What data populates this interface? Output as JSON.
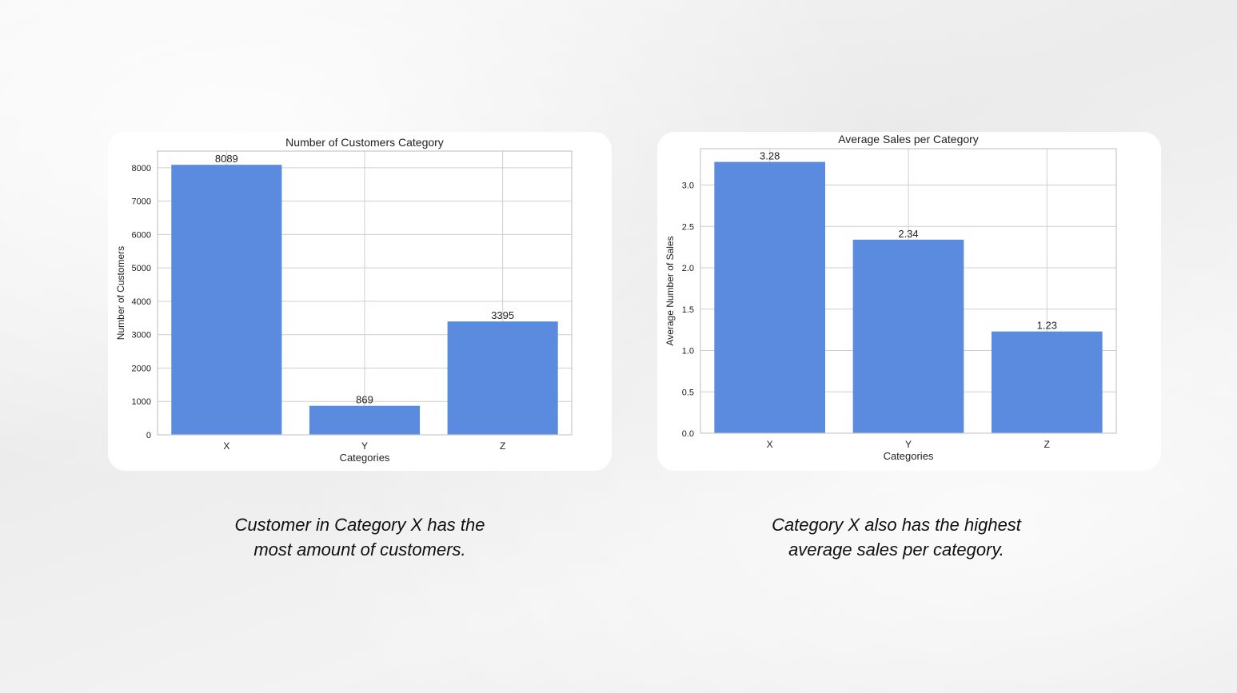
{
  "theme": {
    "bar_color": "#5b8bde",
    "grid_color": "#cfcfcf",
    "frame_color": "#c8c8c8",
    "text_color": "#222222"
  },
  "chart_data": [
    {
      "type": "bar",
      "title": "Number of Customers Category",
      "xlabel": "Categories",
      "ylabel": "Number of Customers",
      "categories": [
        "X",
        "Y",
        "Z"
      ],
      "values": [
        8089,
        869,
        3395
      ],
      "value_labels": [
        "8089",
        "869",
        "3395"
      ],
      "yticks": [
        0,
        1000,
        2000,
        3000,
        4000,
        5000,
        6000,
        7000,
        8000
      ],
      "ytick_labels": [
        "0",
        "1000",
        "2000",
        "3000",
        "4000",
        "5000",
        "6000",
        "7000",
        "8000"
      ],
      "ylim": [
        0,
        8500
      ],
      "grid": true
    },
    {
      "type": "bar",
      "title": "Average Sales per Category",
      "xlabel": "Categories",
      "ylabel": "Average Number of Sales",
      "categories": [
        "X",
        "Y",
        "Z"
      ],
      "values": [
        3.28,
        2.34,
        1.23
      ],
      "value_labels": [
        "3.28",
        "2.34",
        "1.23"
      ],
      "yticks": [
        0.0,
        0.5,
        1.0,
        1.5,
        2.0,
        2.5,
        3.0
      ],
      "ytick_labels": [
        "0.0",
        "0.5",
        "1.0",
        "1.5",
        "2.0",
        "2.5",
        "3.0"
      ],
      "ylim": [
        0,
        3.44
      ],
      "grid": true
    }
  ],
  "captions": [
    {
      "line1": "Customer in Category X has the",
      "line2": "most amount of customers."
    },
    {
      "line1": "Category X also has the highest",
      "line2": "average sales per category."
    }
  ]
}
